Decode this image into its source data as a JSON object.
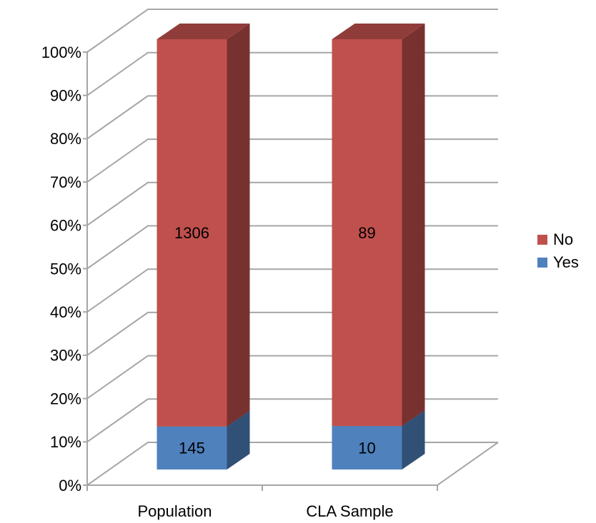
{
  "chart_data": {
    "type": "bar",
    "stack": "percent",
    "categories": [
      "Population",
      "CLA Sample"
    ],
    "series": [
      {
        "name": "Yes",
        "color": "#4f81bd",
        "values": [
          145,
          10
        ]
      },
      {
        "name": "No",
        "color": "#c0504d",
        "values": [
          1306,
          89
        ]
      }
    ],
    "ylim": [
      0,
      100
    ],
    "yticks": [
      {
        "value": 0,
        "label": "0%"
      },
      {
        "value": 10,
        "label": "10%"
      },
      {
        "value": 20,
        "label": "20%"
      },
      {
        "value": 30,
        "label": "30%"
      },
      {
        "value": 40,
        "label": "40%"
      },
      {
        "value": 50,
        "label": "50%"
      },
      {
        "value": 60,
        "label": "60%"
      },
      {
        "value": 70,
        "label": "70%"
      },
      {
        "value": 80,
        "label": "80%"
      },
      {
        "value": 90,
        "label": "90%"
      },
      {
        "value": 100,
        "label": "100%"
      }
    ],
    "grid": true,
    "legend": "right"
  }
}
